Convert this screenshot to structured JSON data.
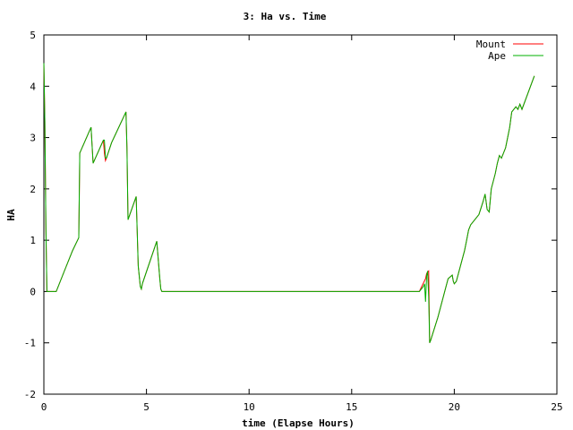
{
  "chart_data": {
    "type": "line",
    "title": "3: Ha vs. Time",
    "xlabel": "time (Elapse Hours)",
    "ylabel": "HA",
    "xlim": [
      0,
      25
    ],
    "ylim": [
      -2,
      5
    ],
    "xticks": [
      "0",
      "5",
      "10",
      "15",
      "20",
      "25"
    ],
    "yticks": [
      "-2",
      "-1",
      "0",
      "1",
      "2",
      "3",
      "4",
      "5"
    ],
    "grid": false,
    "legend_position": "top-right",
    "series": [
      {
        "name": "Mount",
        "color": "#ff0000",
        "x": [
          0,
          0.05,
          0.1,
          0.15,
          0.2,
          0.3,
          0.6,
          1.0,
          1.4,
          1.7,
          1.75,
          2.3,
          2.4,
          2.9,
          2.95,
          3.0,
          3.05,
          3.3,
          4.0,
          4.05,
          4.1,
          4.5,
          4.6,
          4.7,
          4.75,
          4.8,
          5.5,
          5.65,
          5.7,
          5.75,
          6.0,
          10.0,
          15.0,
          18.3,
          18.6,
          18.65,
          18.7,
          18.75,
          18.8,
          18.85,
          19.2,
          19.6,
          19.7,
          19.9,
          19.95,
          20.0,
          20.1,
          20.5,
          20.6,
          20.7,
          20.8,
          21.2,
          21.4,
          21.5,
          21.6,
          21.7,
          21.8,
          22.0,
          22.1,
          22.2,
          22.3,
          22.5,
          22.6,
          22.7,
          22.8,
          23.0,
          23.1,
          23.2,
          23.3,
          23.9
        ],
        "y": [
          4.45,
          3.3,
          1.2,
          0.0,
          0.0,
          0.0,
          0.0,
          0.4,
          0.8,
          1.05,
          2.7,
          3.2,
          2.5,
          2.95,
          2.7,
          2.55,
          2.6,
          2.9,
          3.5,
          2.8,
          1.4,
          1.85,
          0.5,
          0.1,
          0.05,
          0.15,
          0.98,
          0.25,
          0.05,
          0.0,
          0.0,
          0.0,
          0.0,
          0.0,
          0.25,
          0.35,
          0.38,
          0.4,
          -1.0,
          -0.95,
          -0.5,
          0.1,
          0.25,
          0.32,
          0.2,
          0.15,
          0.2,
          0.8,
          1.0,
          1.2,
          1.3,
          1.5,
          1.75,
          1.9,
          1.6,
          1.55,
          2.0,
          2.3,
          2.5,
          2.65,
          2.6,
          2.8,
          3.0,
          3.2,
          3.5,
          3.6,
          3.55,
          3.65,
          3.55,
          4.2
        ]
      },
      {
        "name": "Ape",
        "color": "#00b000",
        "x": [
          0,
          0.05,
          0.1,
          0.15,
          0.2,
          0.3,
          0.6,
          1.0,
          1.4,
          1.7,
          1.75,
          2.3,
          2.4,
          2.9,
          2.95,
          3.0,
          3.05,
          3.3,
          4.0,
          4.05,
          4.1,
          4.5,
          4.6,
          4.7,
          4.75,
          4.8,
          5.5,
          5.65,
          5.7,
          5.75,
          6.0,
          10.0,
          15.0,
          18.3,
          18.5,
          18.55,
          18.6,
          18.65,
          18.7,
          18.75,
          18.8,
          18.85,
          19.2,
          19.6,
          19.7,
          19.9,
          19.95,
          20.0,
          20.1,
          20.5,
          20.6,
          20.7,
          20.8,
          21.2,
          21.4,
          21.5,
          21.6,
          21.7,
          21.8,
          22.0,
          22.1,
          22.2,
          22.3,
          22.5,
          22.6,
          22.7,
          22.8,
          23.0,
          23.1,
          23.2,
          23.3,
          23.9
        ],
        "y": [
          4.45,
          3.3,
          1.2,
          0.0,
          0.0,
          0.0,
          0.0,
          0.4,
          0.8,
          1.05,
          2.7,
          3.2,
          2.5,
          2.95,
          2.95,
          2.6,
          2.6,
          2.9,
          3.5,
          2.8,
          1.4,
          1.85,
          0.5,
          0.1,
          0.05,
          0.15,
          0.98,
          0.25,
          0.05,
          0.0,
          0.0,
          0.0,
          0.0,
          0.0,
          0.1,
          0.15,
          -0.2,
          0.3,
          0.4,
          -0.1,
          -1.0,
          -0.95,
          -0.5,
          0.1,
          0.25,
          0.32,
          0.2,
          0.15,
          0.2,
          0.8,
          1.0,
          1.2,
          1.3,
          1.5,
          1.75,
          1.9,
          1.6,
          1.55,
          2.0,
          2.3,
          2.5,
          2.65,
          2.6,
          2.8,
          3.0,
          3.2,
          3.5,
          3.6,
          3.55,
          3.65,
          3.55,
          4.2
        ]
      }
    ]
  }
}
